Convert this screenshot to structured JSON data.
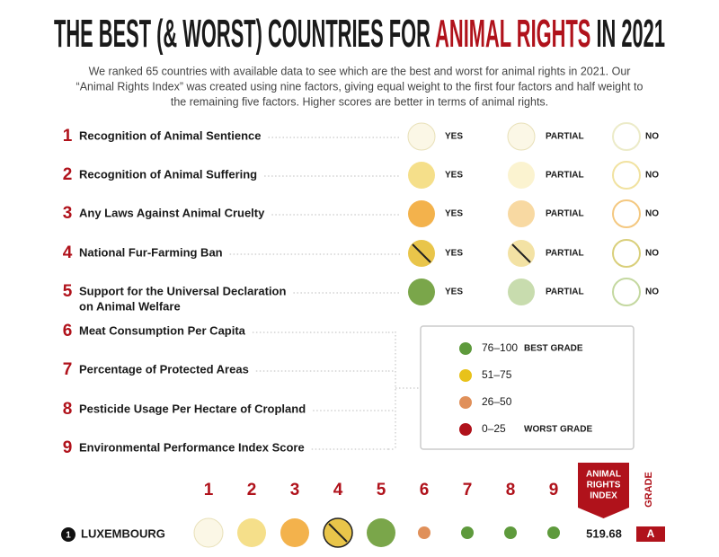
{
  "title": [
    "THE BEST (& WORST) COUNTRIES FOR",
    "ANIMAL RIGHTS",
    "IN 2021"
  ],
  "intro": [
    "We ranked 65 countries with available data to see which are the best and worst for animal rights in 2021. Our",
    "“Animal Rights Index” was created using nine factors, giving equal weight to the first four factors and half weight to",
    "the remaining five factors. Higher scores are better in terms of animal rights."
  ],
  "factors": [
    {
      "number": 1,
      "label": [
        "Recognition of Animal Sentience"
      ]
    },
    {
      "number": 2,
      "label": [
        "Recognition of Animal Suffering"
      ]
    },
    {
      "number": 3,
      "label": [
        "Any Laws Against Animal Cruelty"
      ]
    },
    {
      "number": 4,
      "label": [
        "National Fur-Farming Ban"
      ]
    },
    {
      "number": 5,
      "label": [
        "Support for the Universal Declaration",
        "on Animal Welfare"
      ]
    },
    {
      "number": 6,
      "label": [
        "Meat Consumption Per Capita"
      ]
    },
    {
      "number": 7,
      "label": [
        "Percentage of Protected Areas"
      ]
    },
    {
      "number": 8,
      "label": [
        "Pesticide Usage Per Hectare of Cropland"
      ]
    },
    {
      "number": 9,
      "label": [
        "Environmental Performance Index Score"
      ]
    }
  ],
  "options": [
    "YES",
    "PARTIAL",
    "NO"
  ],
  "legend": [
    {
      "range": "76–100",
      "note": "BEST GRADE",
      "color": "#5e9a3c"
    },
    {
      "range": "51–75",
      "color": "#e8c21a"
    },
    {
      "range": "26–50",
      "color": "#e0905a"
    },
    {
      "range": "0–25",
      "note": "WORST GRADE",
      "color": "#b0121b"
    }
  ],
  "columns": [
    1,
    2,
    3,
    4,
    5,
    6,
    7,
    8,
    9
  ],
  "index_header": [
    "ANIMAL",
    "RIGHTS",
    "INDEX"
  ],
  "grade_header": "GRADE",
  "row": {
    "rank": 1,
    "country": "LUXEMBOURG",
    "score": 519.68,
    "grade": "A"
  }
}
